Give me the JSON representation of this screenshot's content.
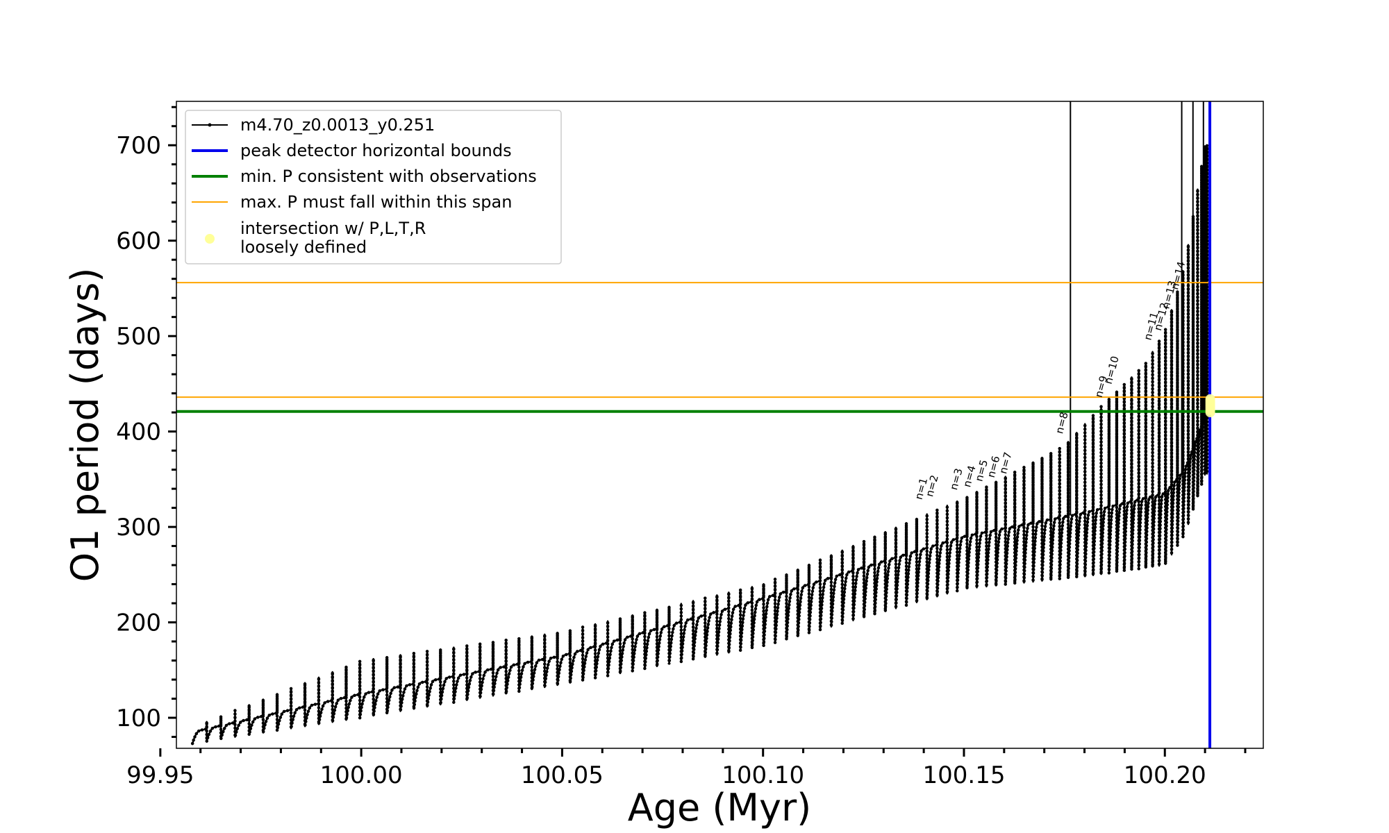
{
  "chart_data": {
    "type": "line",
    "xlabel": "Age (Myr)",
    "ylabel": "O1 period (days)",
    "xlim": [
      99.954,
      100.2245
    ],
    "ylim": [
      68,
      746
    ],
    "xticks_major": [
      {
        "v": 99.95,
        "label": "99.95"
      },
      {
        "v": 100.0,
        "label": "100.00"
      },
      {
        "v": 100.05,
        "label": "100.05"
      },
      {
        "v": 100.1,
        "label": "100.10"
      },
      {
        "v": 100.15,
        "label": "100.15"
      },
      {
        "v": 100.2,
        "label": "100.20"
      }
    ],
    "yticks_major": [
      {
        "v": 100,
        "label": "100"
      },
      {
        "v": 200,
        "label": "200"
      },
      {
        "v": 300,
        "label": "300"
      },
      {
        "v": 400,
        "label": "400"
      },
      {
        "v": 500,
        "label": "500"
      },
      {
        "v": 600,
        "label": "600"
      },
      {
        "v": 700,
        "label": "700"
      }
    ],
    "grid": false,
    "legend_position": "top-left",
    "legend": [
      {
        "label": "m4.70_z0.0013_y0.251",
        "kind": "line-marker",
        "color": "#000000"
      },
      {
        "label": "peak detector horizontal bounds",
        "kind": "line",
        "color": "#0000ee"
      },
      {
        "label": "min. P consistent with observations",
        "kind": "line",
        "color": "#008000"
      },
      {
        "label": "max. P must fall within this span",
        "kind": "line",
        "color": "#ffa500"
      },
      {
        "label": "intersection w/ P,L,T,R",
        "label2": "loosely defined",
        "kind": "marker",
        "color": "#ffff99"
      }
    ],
    "series": {
      "name": "m4.70_z0.0013_y0.251",
      "color": "#000000",
      "start_age": 99.958,
      "end_age": 100.2105,
      "n_pulses": 96,
      "base_period": [
        [
          99.958,
          85
        ],
        [
          100.0,
          125
        ],
        [
          100.05,
          165
        ],
        [
          100.1,
          225
        ],
        [
          100.15,
          290
        ],
        [
          100.18,
          315
        ],
        [
          100.2,
          335
        ],
        [
          100.205,
          360
        ],
        [
          100.21,
          415
        ]
      ],
      "spike_period": [
        [
          99.958,
          90
        ],
        [
          100.0,
          160
        ],
        [
          100.05,
          190
        ],
        [
          100.1,
          240
        ],
        [
          100.15,
          330
        ],
        [
          100.175,
          385
        ],
        [
          100.185,
          430
        ],
        [
          100.195,
          470
        ],
        [
          100.2,
          505
        ],
        [
          100.203,
          545
        ],
        [
          100.205,
          575
        ],
        [
          100.21,
          700
        ]
      ],
      "dip_depth": [
        [
          99.958,
          12
        ],
        [
          100.0,
          25
        ],
        [
          100.05,
          30
        ],
        [
          100.1,
          50
        ],
        [
          100.15,
          55
        ],
        [
          100.2,
          75
        ],
        [
          100.21,
          60
        ]
      ],
      "off_scale_spikes": [
        100.1765,
        100.2042,
        100.207,
        100.2096
      ]
    },
    "peak_detector_bound": {
      "x": 100.2112,
      "color": "#0000ee"
    },
    "min_period_line": {
      "y": 421,
      "color": "#008000"
    },
    "max_period_span": {
      "y": [
        436,
        556
      ],
      "color": "#ffa500"
    },
    "intersection": {
      "x": 100.2113,
      "y_range": [
        420,
        434
      ],
      "color": "#ffff99"
    },
    "peak_annotations": [
      {
        "label": "n=1",
        "x": 100.1395,
        "y": 328
      },
      {
        "label": "n=2",
        "x": 100.1422,
        "y": 331
      },
      {
        "label": "n=3",
        "x": 100.1482,
        "y": 338
      },
      {
        "label": "n=4",
        "x": 100.1515,
        "y": 341
      },
      {
        "label": "n=5",
        "x": 100.1545,
        "y": 347
      },
      {
        "label": "n=6",
        "x": 100.1575,
        "y": 351
      },
      {
        "label": "n=7",
        "x": 100.1605,
        "y": 355
      },
      {
        "label": "n=8",
        "x": 100.1745,
        "y": 397
      },
      {
        "label": "n=9",
        "x": 100.1843,
        "y": 435
      },
      {
        "label": "n=10",
        "x": 100.1867,
        "y": 449
      },
      {
        "label": "n=11",
        "x": 100.1965,
        "y": 495
      },
      {
        "label": "n=12",
        "x": 100.199,
        "y": 505
      },
      {
        "label": "n=13",
        "x": 100.201,
        "y": 528
      },
      {
        "label": "n=14",
        "x": 100.2032,
        "y": 548
      }
    ]
  }
}
